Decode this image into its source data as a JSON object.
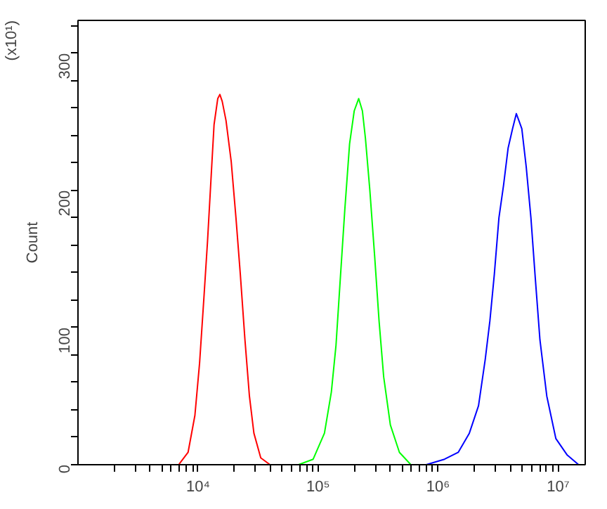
{
  "chart_data": {
    "type": "line",
    "ylabel": "Count",
    "annotations": [
      "(x10¹)"
    ],
    "log": "x",
    "xlim": [
      1000,
      16800000
    ],
    "ylim": [
      0,
      324
    ],
    "xticks": [
      {
        "value": 2000,
        "label": null
      },
      {
        "value": 3000,
        "label": null
      },
      {
        "value": 4000,
        "label": null
      },
      {
        "value": 5000,
        "label": null
      },
      {
        "value": 6000,
        "label": null
      },
      {
        "value": 7000,
        "label": null
      },
      {
        "value": 8000,
        "label": null
      },
      {
        "value": 9000,
        "label": null
      },
      {
        "value": 10000,
        "label": "10⁴"
      },
      {
        "value": 20000,
        "label": null
      },
      {
        "value": 30000,
        "label": null
      },
      {
        "value": 40000,
        "label": null
      },
      {
        "value": 50000,
        "label": null
      },
      {
        "value": 60000,
        "label": null
      },
      {
        "value": 70000,
        "label": null
      },
      {
        "value": 80000,
        "label": null
      },
      {
        "value": 90000,
        "label": null
      },
      {
        "value": 100000,
        "label": "10⁵"
      },
      {
        "value": 200000,
        "label": null
      },
      {
        "value": 300000,
        "label": null
      },
      {
        "value": 400000,
        "label": null
      },
      {
        "value": 500000,
        "label": null
      },
      {
        "value": 600000,
        "label": null
      },
      {
        "value": 700000,
        "label": null
      },
      {
        "value": 800000,
        "label": null
      },
      {
        "value": 900000,
        "label": null
      },
      {
        "value": 1000000,
        "label": "10⁶"
      },
      {
        "value": 2000000,
        "label": null
      },
      {
        "value": 3000000,
        "label": null
      },
      {
        "value": 4000000,
        "label": null
      },
      {
        "value": 5000000,
        "label": null
      },
      {
        "value": 6000000,
        "label": null
      },
      {
        "value": 7000000,
        "label": null
      },
      {
        "value": 8000000,
        "label": null
      },
      {
        "value": 9000000,
        "label": null
      },
      {
        "value": 10000000,
        "label": "10⁷"
      }
    ],
    "yticks": [
      0,
      {
        "value": 20,
        "label": null
      },
      {
        "value": 40,
        "label": null
      },
      {
        "value": 60,
        "label": null
      },
      {
        "value": 80,
        "label": null
      },
      100,
      {
        "value": 120,
        "label": null
      },
      {
        "value": 140,
        "label": null
      },
      {
        "value": 160,
        "label": null
      },
      {
        "value": 180,
        "label": null
      },
      200,
      {
        "value": 220,
        "label": null
      },
      {
        "value": 240,
        "label": null
      },
      {
        "value": 260,
        "label": null
      },
      {
        "value": 280,
        "label": null
      },
      300,
      {
        "value": 320,
        "label": null
      }
    ],
    "series": [
      {
        "color": "#ff0000",
        "x": [
          6900,
          8260,
          9420,
          10300,
          11200,
          12000,
          12800,
          13600,
          14600,
          15200,
          15900,
          17100,
          18900,
          20700,
          22500,
          24600,
          26800,
          29200,
          33300,
          39800
        ],
        "values": [
          0,
          9,
          36,
          74,
          122,
          163,
          207,
          248,
          267,
          270,
          265,
          251,
          221,
          180,
          139,
          91,
          50,
          23,
          5,
          0
        ]
      },
      {
        "color": "#00ff00",
        "x": [
          68700,
          91000,
          113000,
          129000,
          141000,
          153000,
          167000,
          183000,
          200000,
          218000,
          234000,
          248000,
          270000,
          296000,
          322000,
          352000,
          400000,
          476000,
          593000
        ],
        "values": [
          0,
          4,
          23,
          53,
          87,
          135,
          186,
          234,
          258,
          267,
          258,
          238,
          200,
          152,
          105,
          64,
          29,
          9,
          0
        ]
      },
      {
        "color": "#0000ff",
        "x": [
          796000,
          1130000,
          1470000,
          1820000,
          2170000,
          2470000,
          2700000,
          2940000,
          3210000,
          3510000,
          3830000,
          4170000,
          4480000,
          4750000,
          4980000,
          5420000,
          5930000,
          6460000,
          7050000,
          8040000,
          9570000,
          11900000,
          14800000
        ],
        "values": [
          0,
          4,
          9,
          23,
          43,
          77,
          105,
          139,
          180,
          204,
          231,
          245,
          256,
          250,
          245,
          217,
          180,
          135,
          91,
          50,
          19,
          7,
          0
        ]
      }
    ]
  }
}
